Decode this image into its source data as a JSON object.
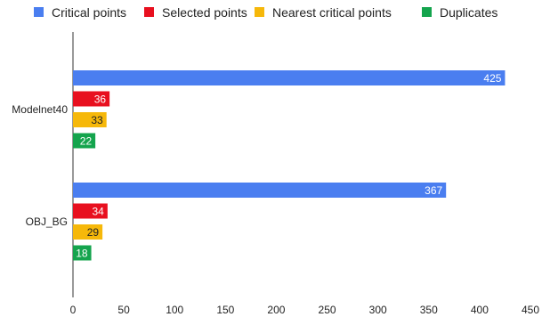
{
  "chart_data": {
    "type": "bar",
    "orientation": "horizontal",
    "categories": [
      "Modelnet40",
      "OBJ_BG"
    ],
    "series": [
      {
        "name": "Critical points",
        "color": "#4a7ef0",
        "values": [
          425,
          367
        ]
      },
      {
        "name": "Selected points",
        "color": "#e8101f",
        "values": [
          36,
          34
        ]
      },
      {
        "name": "Nearest critical points",
        "color": "#f6b80a",
        "values": [
          33,
          29
        ]
      },
      {
        "name": "Duplicates",
        "color": "#14a44d",
        "values": [
          22,
          18
        ]
      }
    ],
    "xlim": [
      0,
      450
    ],
    "xticks": [
      0,
      50,
      100,
      150,
      200,
      250,
      300,
      350,
      400,
      450
    ],
    "legend_position": "top",
    "grid": false,
    "data_labels": true
  }
}
